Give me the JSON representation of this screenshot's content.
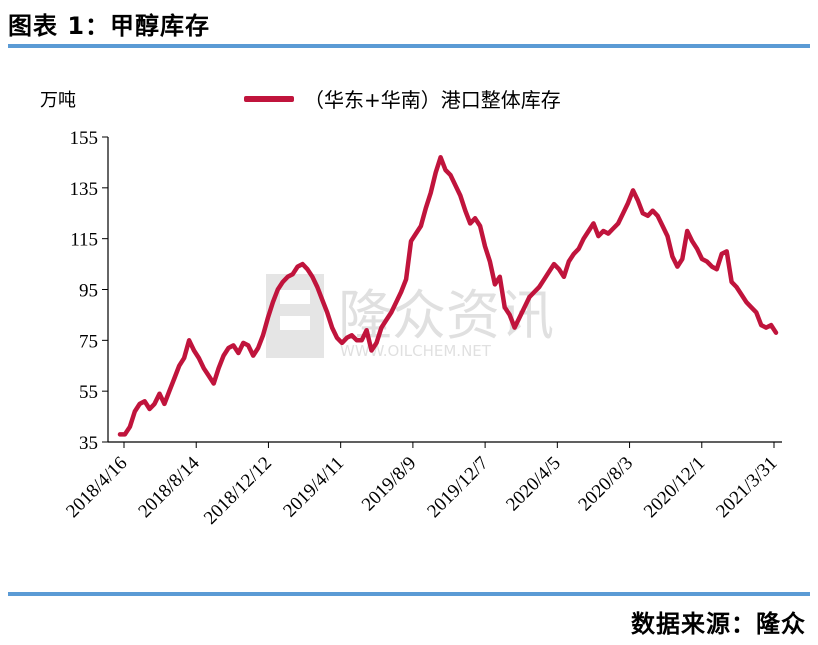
{
  "header": {
    "title": "图表 1：甲醇库存"
  },
  "footer": {
    "source": "数据来源：隆众"
  },
  "watermark": {
    "text": "隆众资讯",
    "url": "WWW.OILCHEM.NET"
  },
  "chart_data": {
    "type": "line",
    "unit_label": "万吨",
    "ylim": [
      35,
      155
    ],
    "yticks": [
      "35",
      "55",
      "75",
      "95",
      "115",
      "135",
      "155"
    ],
    "x_tick_labels": [
      "2018/4/16",
      "2018/8/14",
      "2018/12/12",
      "2019/4/11",
      "2019/8/9",
      "2019/12/7",
      "2020/4/5",
      "2020/8/3",
      "2020/12/1",
      "2021/3/31"
    ],
    "grid": false,
    "legend_position": "top",
    "series": [
      {
        "name": "（华东+华南）港口整体库存",
        "color": "#c0143c",
        "values": [
          38,
          38,
          41,
          47,
          50,
          51,
          48,
          50,
          54,
          50,
          55,
          60,
          65,
          68,
          75,
          71,
          68,
          64,
          61,
          58,
          64,
          69,
          72,
          73,
          70,
          74,
          73,
          69,
          72,
          77,
          84,
          90,
          95,
          98,
          100,
          101,
          104,
          105,
          103,
          100,
          96,
          91,
          86,
          80,
          76,
          74,
          76,
          77,
          75,
          75,
          79,
          71,
          74,
          80,
          83,
          86,
          90,
          94,
          99,
          114,
          117,
          120,
          127,
          133,
          141,
          147,
          142,
          140,
          136,
          132,
          126,
          121,
          123,
          120,
          112,
          106,
          97,
          100,
          88,
          85,
          80,
          84,
          88,
          92,
          94,
          96,
          99,
          102,
          105,
          103,
          100,
          106,
          109,
          111,
          115,
          118,
          121,
          116,
          118,
          117,
          119,
          121,
          125,
          129,
          134,
          130,
          125,
          124,
          126,
          124,
          120,
          116,
          108,
          104,
          107,
          118,
          114,
          111,
          107,
          106,
          104,
          103,
          109,
          110,
          98,
          96,
          93,
          90,
          88,
          86,
          81,
          80,
          81,
          78
        ]
      }
    ]
  }
}
